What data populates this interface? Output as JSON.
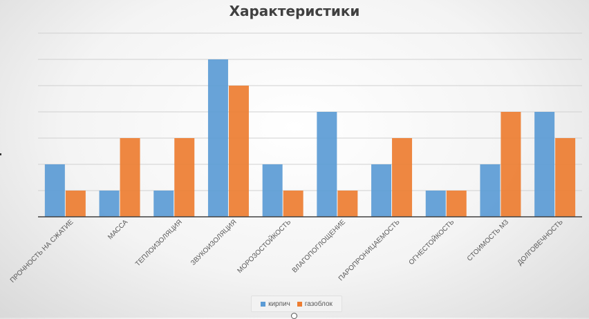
{
  "chart_data": {
    "type": "bar",
    "title": "Характеристики",
    "categories": [
      "ПРОЧНОСТЬ НА СЖАТИЕ",
      "МАССА",
      "ТЕПЛОИЗОЛЯЦИЯ",
      "ЗВУКОИЗОЛЯЦИЯ",
      "МОРОЗОСТОЙКОСТЬ",
      "ВЛАГОПОГЛОЩЕНИЕ",
      "ПАРОПРОНИЦАЕМОСТЬ",
      "ОГНЕСТОЙКОСТЬ",
      "СТОИМОСТЬ М3",
      "ДОЛГОВЕЧНОСТЬ"
    ],
    "series": [
      {
        "name": "кирпич",
        "color": "#5b9bd5",
        "values": [
          2,
          1,
          1,
          6,
          2,
          4,
          2,
          1,
          2,
          4
        ]
      },
      {
        "name": "газоблок",
        "color": "#ed7d31",
        "values": [
          1,
          3,
          3,
          5,
          1,
          1,
          3,
          1,
          4,
          3
        ]
      }
    ],
    "ylim": [
      0,
      7
    ],
    "grid": true,
    "legend_position": "bottom"
  }
}
